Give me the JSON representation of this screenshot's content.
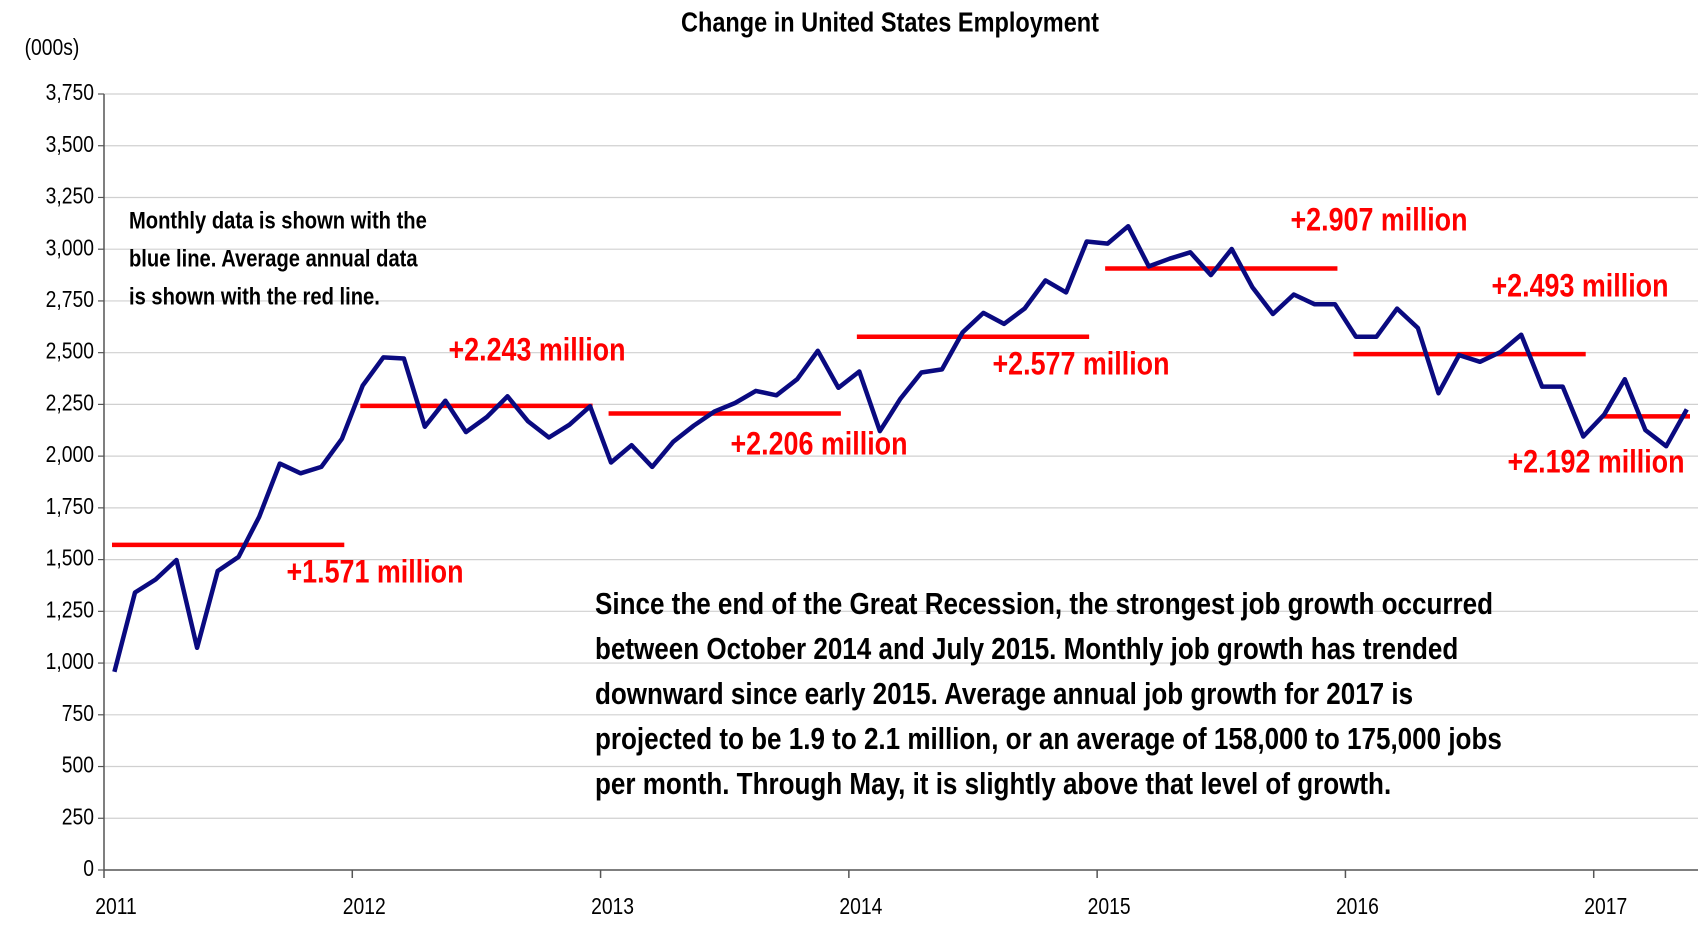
{
  "chart_data": {
    "type": "line",
    "title": "Change in United States Employment",
    "y_label": "(000s)",
    "x": [
      2011.042,
      2011.125,
      2011.208,
      2011.292,
      2011.375,
      2011.458,
      2011.542,
      2011.625,
      2011.708,
      2011.792,
      2011.875,
      2011.958,
      2012.042,
      2012.125,
      2012.208,
      2012.292,
      2012.375,
      2012.458,
      2012.542,
      2012.625,
      2012.708,
      2012.792,
      2012.875,
      2012.958,
      2013.042,
      2013.125,
      2013.208,
      2013.292,
      2013.375,
      2013.458,
      2013.542,
      2013.625,
      2013.708,
      2013.792,
      2013.875,
      2013.958,
      2014.042,
      2014.125,
      2014.208,
      2014.292,
      2014.375,
      2014.458,
      2014.542,
      2014.625,
      2014.708,
      2014.792,
      2014.875,
      2014.958,
      2015.042,
      2015.125,
      2015.208,
      2015.292,
      2015.375,
      2015.458,
      2015.542,
      2015.625,
      2015.708,
      2015.792,
      2015.875,
      2015.958,
      2016.042,
      2016.125,
      2016.208,
      2016.292,
      2016.375,
      2016.458,
      2016.542,
      2016.625,
      2016.708,
      2016.792,
      2016.875,
      2016.958,
      2017.042,
      2017.125,
      2017.208,
      2017.292,
      2017.375
    ],
    "series": [
      {
        "color": "#0a0a80",
        "values": [
          958,
          1341,
          1404,
          1498,
          1074,
          1445,
          1513,
          1707,
          1964,
          1917,
          1948,
          2084,
          2341,
          2477,
          2472,
          2142,
          2268,
          2116,
          2189,
          2289,
          2168,
          2090,
          2152,
          2241,
          1969,
          2053,
          1948,
          2069,
          2147,
          2215,
          2257,
          2315,
          2294,
          2372,
          2509,
          2330,
          2409,
          2121,
          2278,
          2404,
          2419,
          2598,
          2692,
          2639,
          2713,
          2849,
          2791,
          3037,
          3027,
          3111,
          2917,
          2954,
          2985,
          2875,
          3001,
          2817,
          2687,
          2781,
          2734,
          2734,
          2577,
          2577,
          2713,
          2619,
          2304,
          2488,
          2456,
          2503,
          2587,
          2336,
          2336,
          2095,
          2200,
          2372,
          2126,
          2048,
          2226
        ]
      }
    ],
    "annual_averages": {
      "color": "#ff0000",
      "values": [
        1571,
        2243,
        2206,
        2577,
        2907,
        2493,
        2192
      ],
      "value_labels": [
        "+1.571 million",
        "+2.243 million",
        "+2.206 million",
        "+2.577 million",
        "+2.907 million",
        "+2.493 million",
        "+2.192 million"
      ]
    },
    "annotations": [
      [
        "Monthly data is shown with the",
        "blue line. Average annual data",
        "is shown with the red line."
      ],
      [
        "Since the end of the Great Recession, the strongest job growth occurred",
        "between October 2014 and July 2015. Monthly job growth has trended",
        "downward since early 2015. Average annual job growth for 2017 is",
        "projected to be 1.9 to 2.1 million, or an average of 158,000 to 175,000 jobs",
        "per month. Through May, it is slightly above that level of growth."
      ]
    ],
    "xlim": [
      2011,
      2017.42
    ],
    "xticks": [
      2011,
      2012,
      2013,
      2014,
      2015,
      2016,
      2017
    ],
    "ylim": [
      0,
      3750
    ],
    "yticks": [
      {
        "value": 0,
        "label": "0"
      },
      {
        "value": 250,
        "label": "250"
      },
      {
        "value": 500,
        "label": "500"
      },
      {
        "value": 750,
        "label": "750"
      },
      {
        "value": 1000,
        "label": "1,000"
      },
      {
        "value": 1250,
        "label": "1,250"
      },
      {
        "value": 1500,
        "label": "1,500"
      },
      {
        "value": 1750,
        "label": "1,750"
      },
      {
        "value": 2000,
        "label": "2,000"
      },
      {
        "value": 2250,
        "label": "2,250"
      },
      {
        "value": 2500,
        "label": "2,500"
      },
      {
        "value": 2750,
        "label": "2,750"
      },
      {
        "value": 3000,
        "label": "3,000"
      },
      {
        "value": 3250,
        "label": "3,250"
      },
      {
        "value": 3500,
        "label": "3,500"
      },
      {
        "value": 3750,
        "label": "3,750"
      }
    ],
    "grid": true
  }
}
